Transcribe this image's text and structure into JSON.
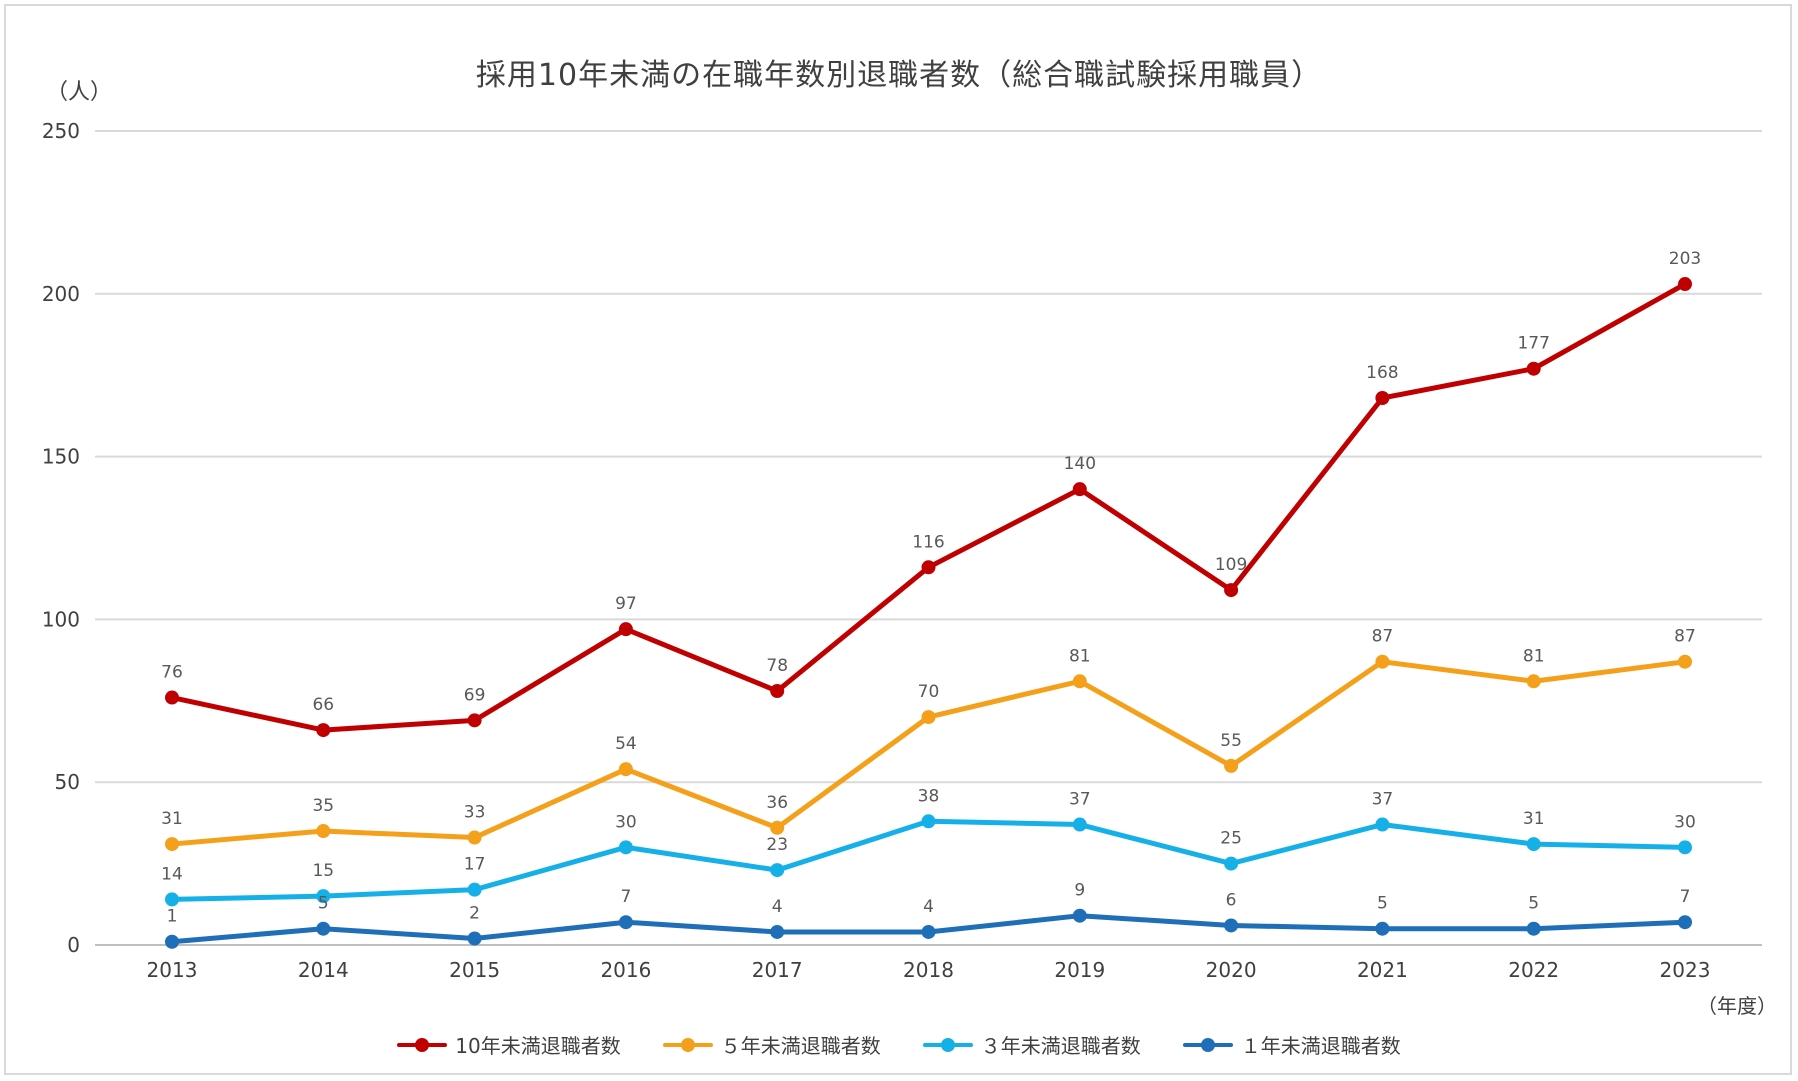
{
  "chart_data": {
    "type": "line",
    "title": "採用10年未満の在職年数別退職者数（総合職試験採用職員）",
    "ylabel": "（人）",
    "xlabel": "（年度）",
    "ylim": [
      0,
      250
    ],
    "yticks": [
      0,
      50,
      100,
      150,
      200,
      250
    ],
    "grid": true,
    "legend_position": "bottom",
    "x": [
      "2013",
      "2014",
      "2015",
      "2016",
      "2017",
      "2018",
      "2019",
      "2020",
      "2021",
      "2022",
      "2023"
    ],
    "series": [
      {
        "name": "10年未満退職者数",
        "color": "#c00000",
        "values": [
          76,
          66,
          69,
          97,
          78,
          116,
          140,
          109,
          168,
          177,
          203
        ]
      },
      {
        "name": "５年未満退職者数",
        "color": "#f5a01a",
        "values": [
          31,
          35,
          33,
          54,
          36,
          70,
          81,
          55,
          87,
          81,
          87
        ]
      },
      {
        "name": "３年未満退職者数",
        "color": "#16b0e8",
        "values": [
          14,
          15,
          17,
          30,
          23,
          38,
          37,
          25,
          37,
          31,
          30
        ]
      },
      {
        "name": "１年未満退職者数",
        "color": "#1f6eb8",
        "values": [
          1,
          5,
          2,
          7,
          4,
          4,
          9,
          6,
          5,
          5,
          7
        ]
      }
    ]
  }
}
